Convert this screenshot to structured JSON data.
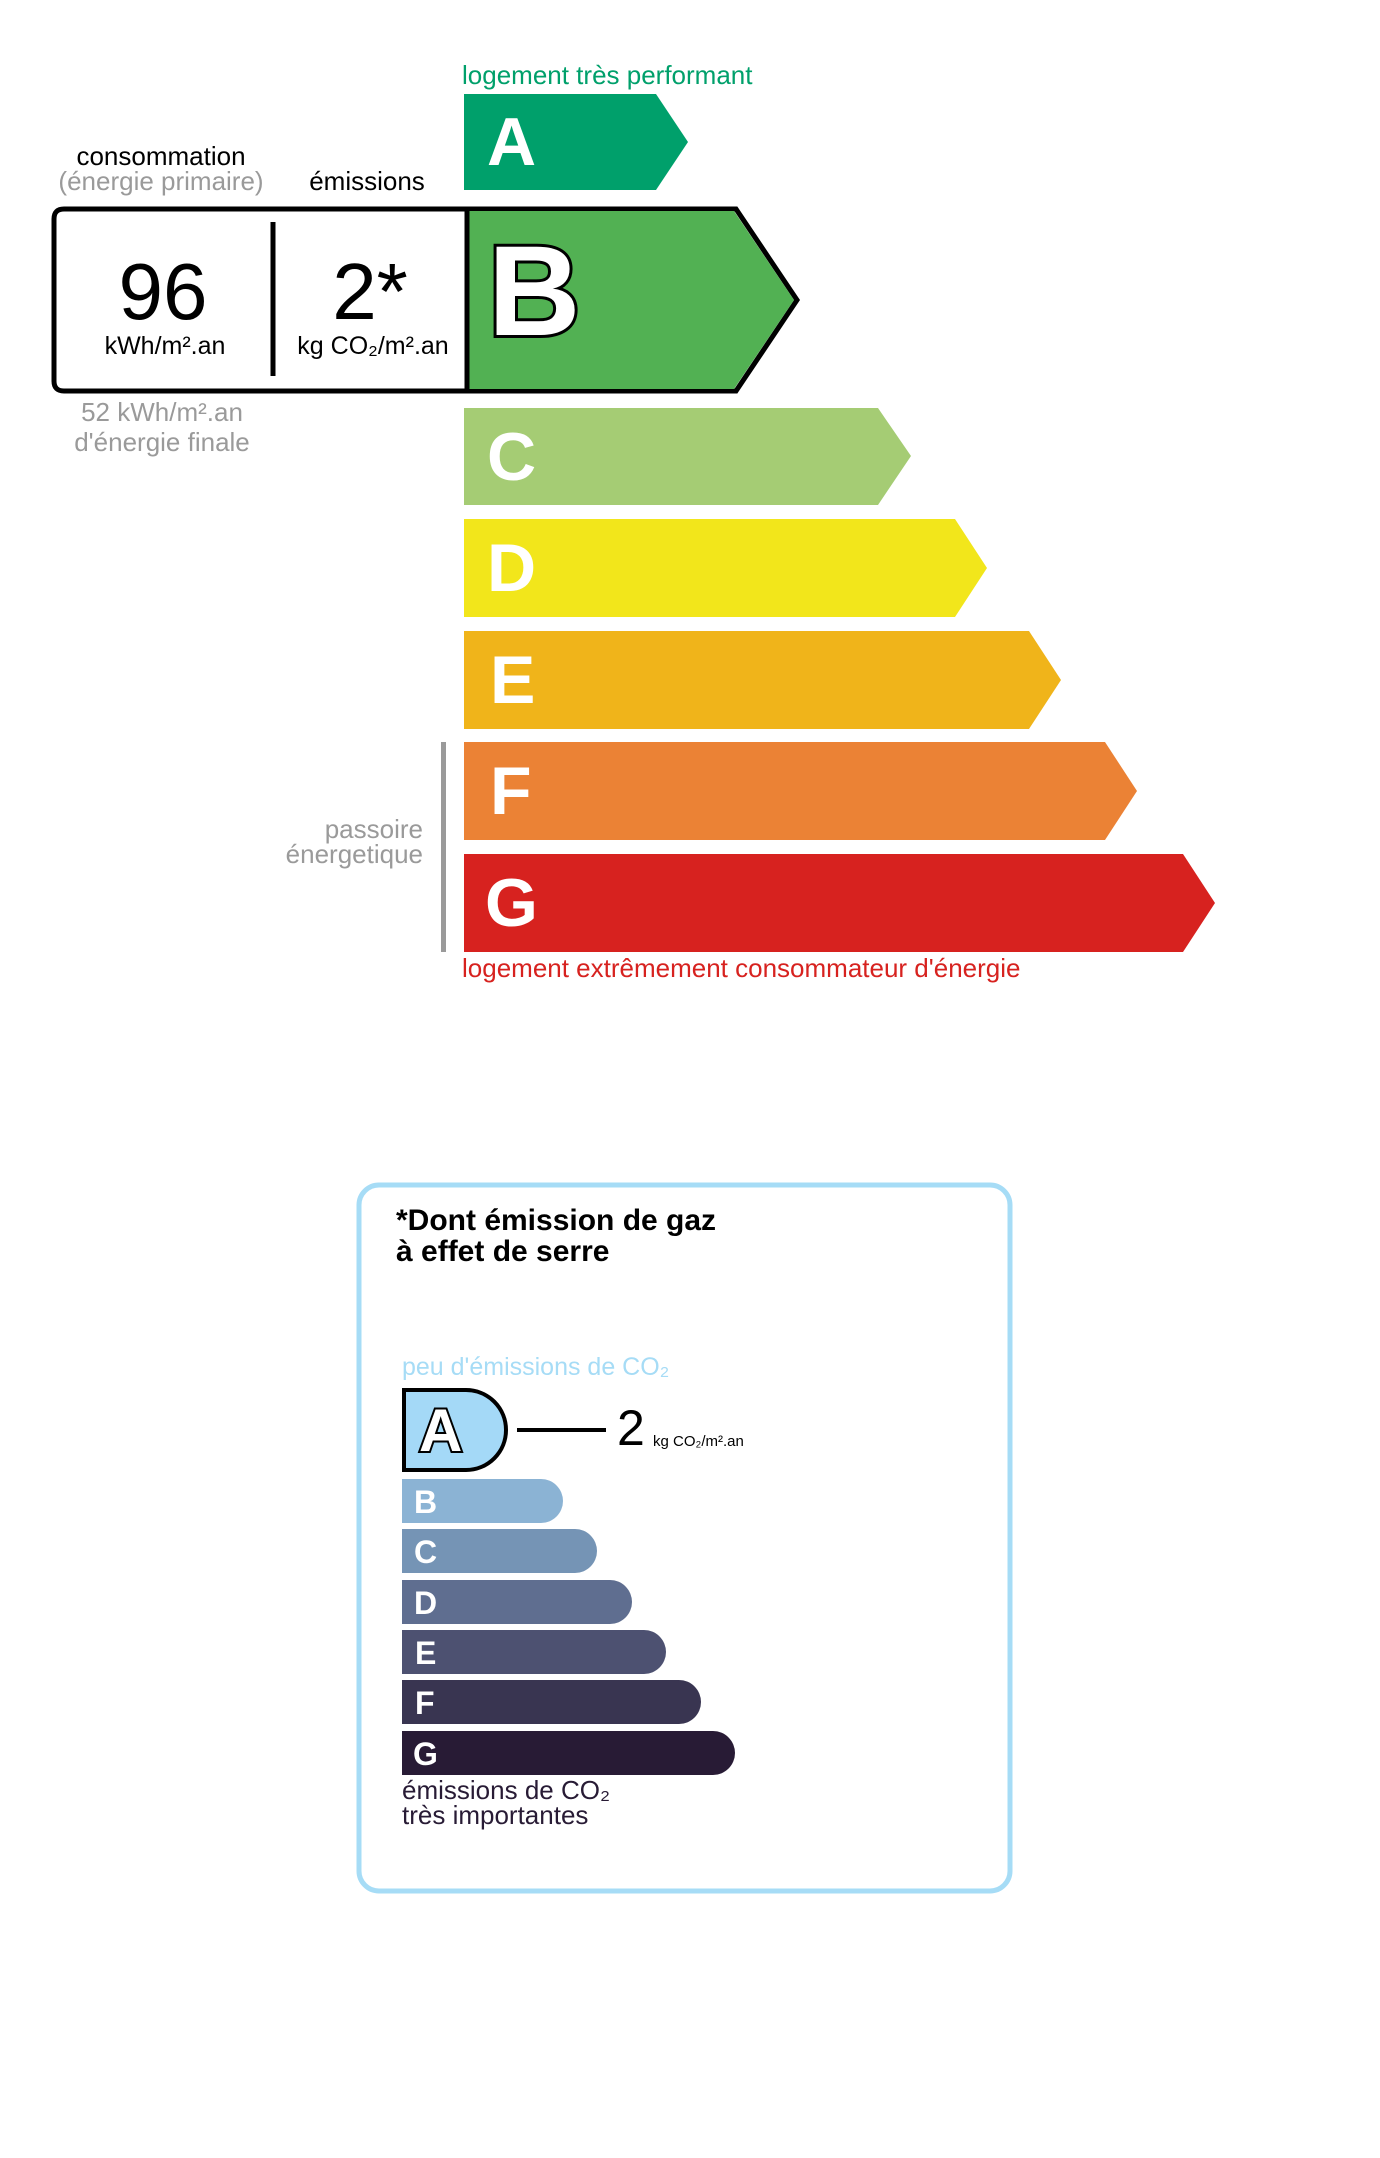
{
  "energy_label": {
    "top_caption": "logement très performant",
    "bottom_caption": "logement extrêmement consommateur d'énergie",
    "consumption_header": "consommation",
    "consumption_subheader": "(énergie primaire)",
    "emissions_header": "émissions",
    "consumption_value": "96",
    "consumption_unit": "kWh/m².an",
    "emissions_value": "2*",
    "emissions_unit": "kg CO₂/m².an",
    "final_energy_value": "52 kWh/m².an",
    "final_energy_label": "d'énergie finale",
    "passoire_line1": "passoire",
    "passoire_line2": "énergetique",
    "current_class": "B",
    "classes": [
      {
        "letter": "A",
        "color": "#00a06b"
      },
      {
        "letter": "B",
        "color": "#52b153"
      },
      {
        "letter": "C",
        "color": "#a5cc74"
      },
      {
        "letter": "D",
        "color": "#f2e61b"
      },
      {
        "letter": "E",
        "color": "#f0b41a"
      },
      {
        "letter": "F",
        "color": "#eb8235"
      },
      {
        "letter": "G",
        "color": "#d7221f"
      }
    ]
  },
  "ges_label": {
    "title_line1": "*Dont émission de gaz",
    "title_line2": "à effet de serre",
    "top_caption": "peu d'émissions de CO₂",
    "bottom_caption_line1": "émissions de CO₂",
    "bottom_caption_line2": "très importantes",
    "value": "2",
    "unit": "kg CO₂/m².an",
    "current_class": "A",
    "border_color": "#a6dcf6",
    "classes": [
      {
        "letter": "A",
        "color": "#a4d9f7"
      },
      {
        "letter": "B",
        "color": "#8bb3d4"
      },
      {
        "letter": "C",
        "color": "#7594b5"
      },
      {
        "letter": "D",
        "color": "#5f6e90"
      },
      {
        "letter": "E",
        "color": "#4d5171"
      },
      {
        "letter": "F",
        "color": "#393551"
      },
      {
        "letter": "G",
        "color": "#281b35"
      }
    ]
  }
}
